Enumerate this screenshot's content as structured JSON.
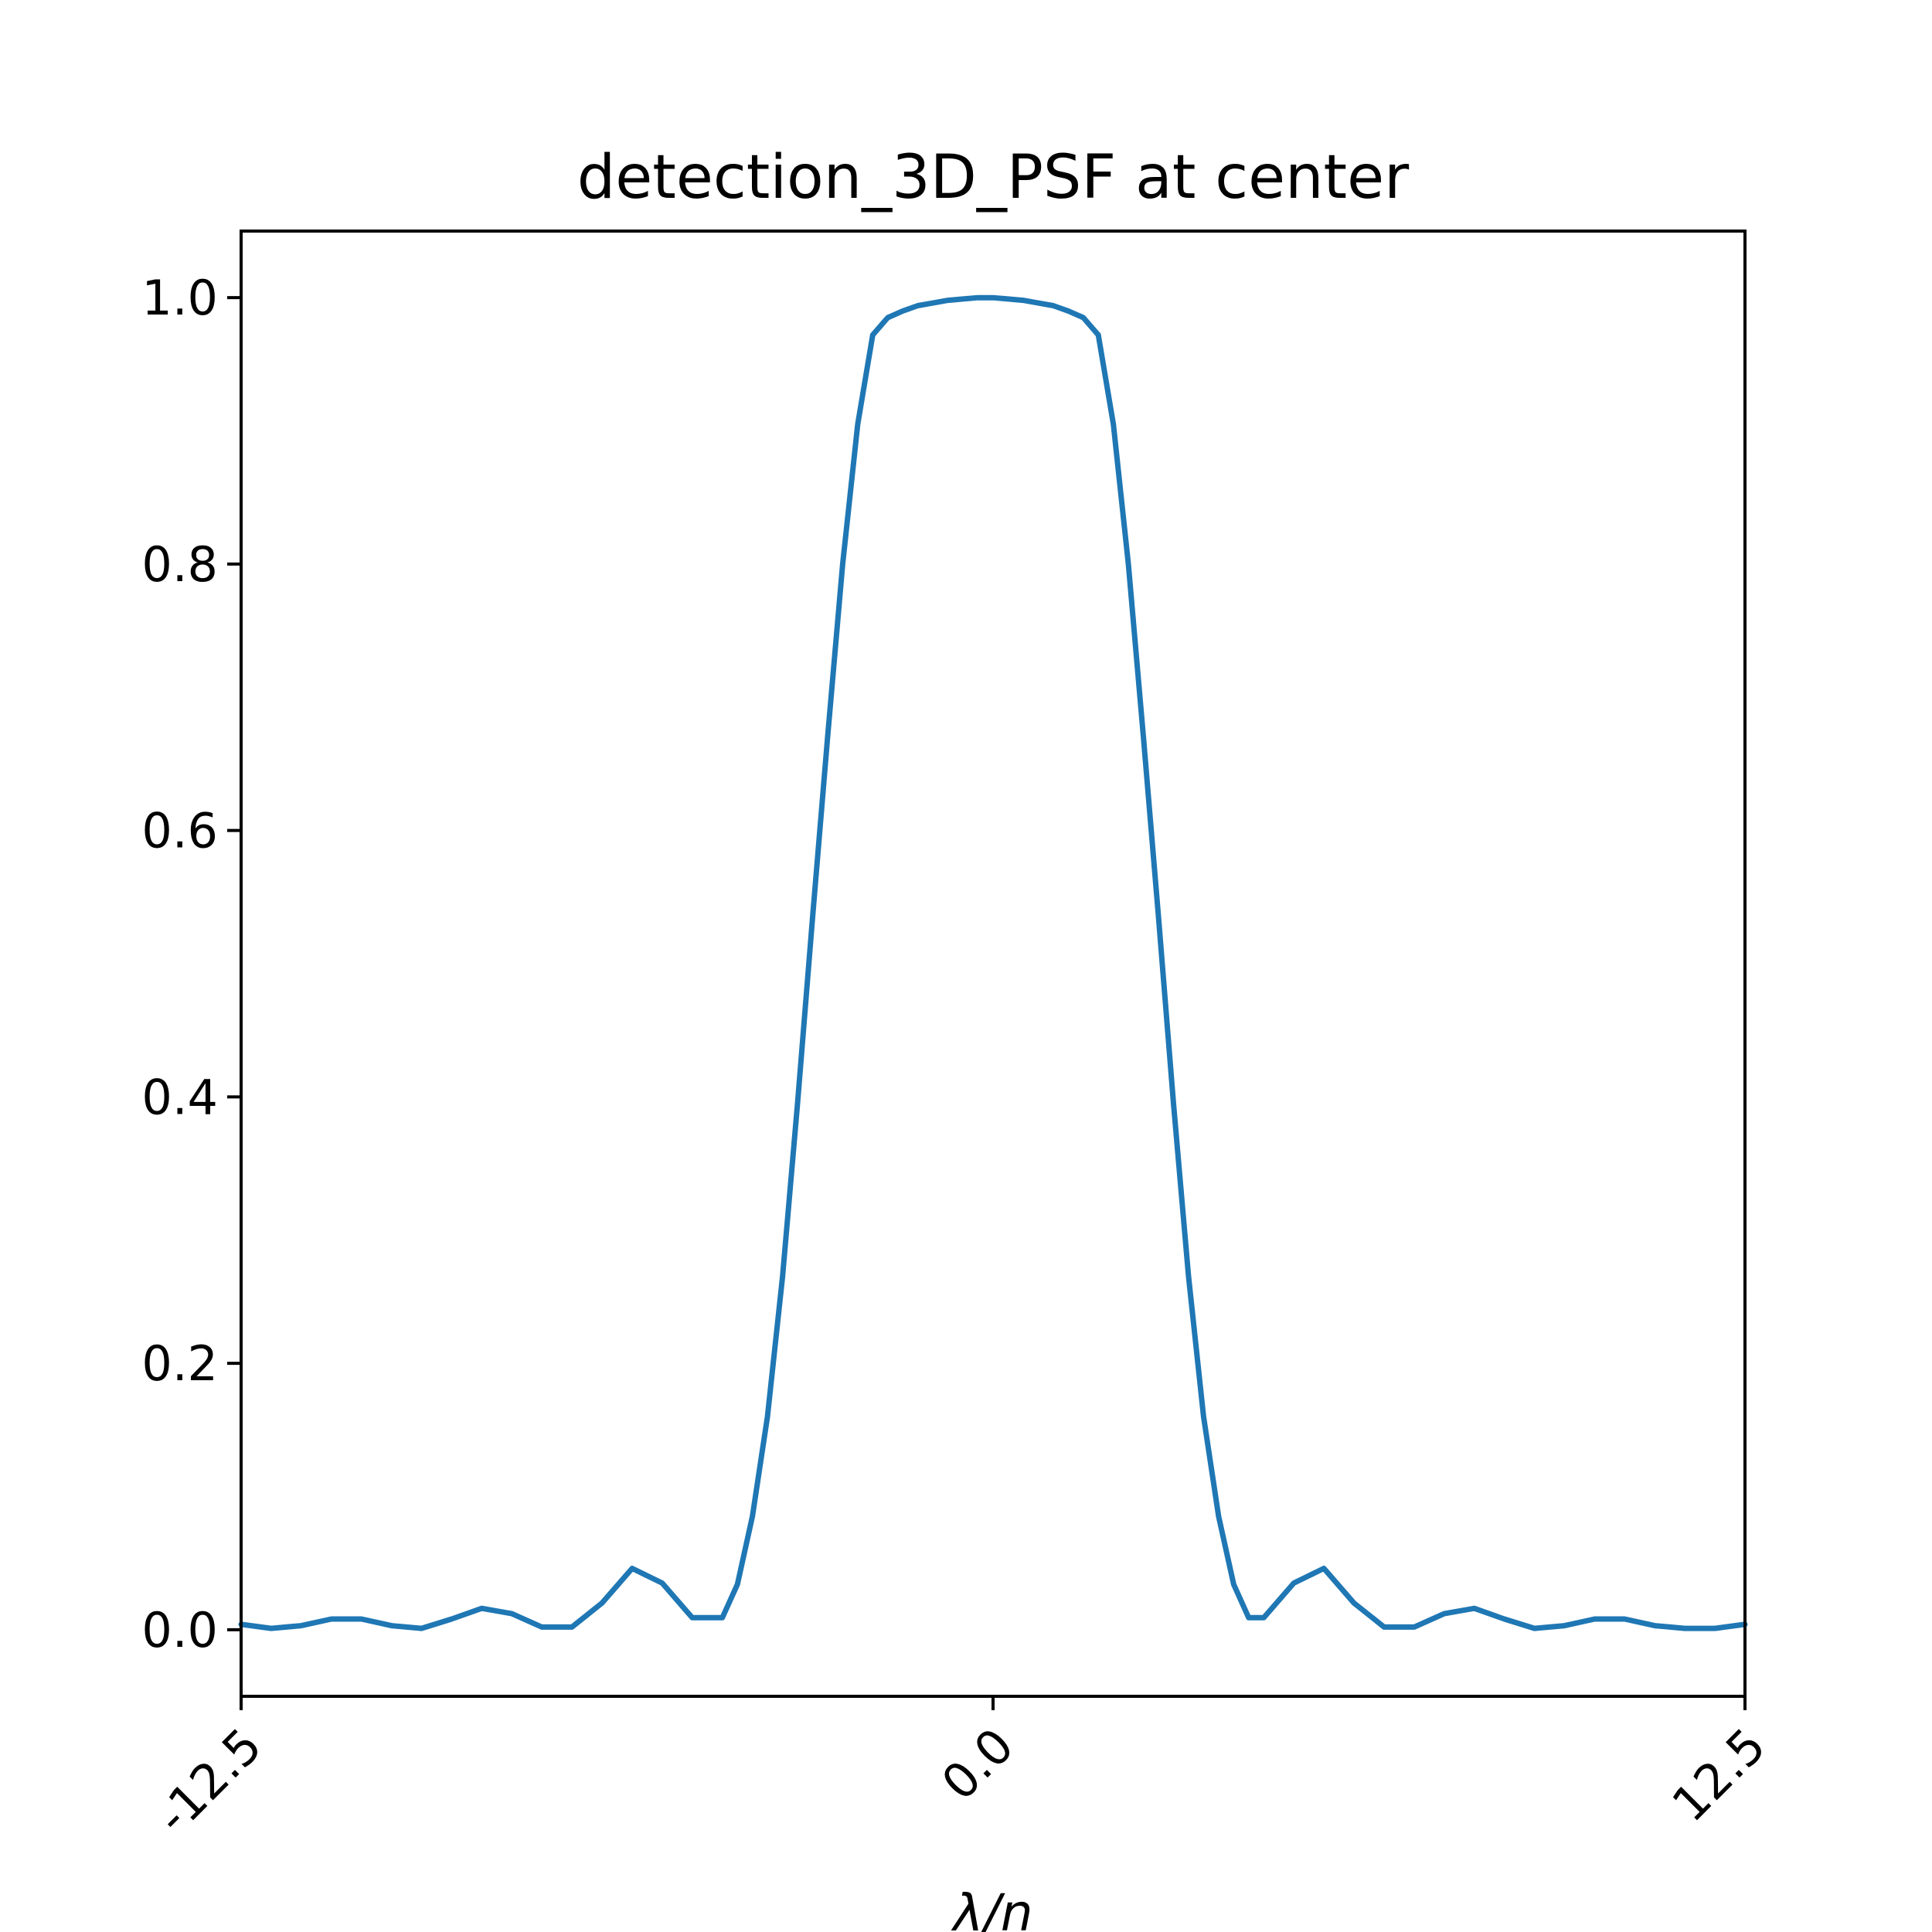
{
  "chart_data": {
    "type": "line",
    "title": "detection_3D_PSF at center",
    "xlabel": "λ/n",
    "ylabel": "",
    "xlim": [
      -12.5,
      12.5
    ],
    "ylim": [
      -0.05,
      1.05
    ],
    "xticks": [
      -12.5,
      0.0,
      12.5
    ],
    "xtick_labels": [
      "-12.5",
      "0.0",
      "12.5"
    ],
    "yticks": [
      0.0,
      0.2,
      0.4,
      0.6,
      0.8,
      1.0
    ],
    "ytick_labels": [
      "0.0",
      "0.2",
      "0.4",
      "0.6",
      "0.8",
      "1.0"
    ],
    "grid": false,
    "series": [
      {
        "color": "#1f77b4",
        "x": [
          -12.5,
          -12.0,
          -11.5,
          -11.0,
          -10.5,
          -10.0,
          -9.5,
          -9.0,
          -8.5,
          -8.0,
          -7.5,
          -7.0,
          -6.5,
          -6.0,
          -5.5,
          -5.0,
          -4.5,
          -4.25,
          -4.0,
          -3.75,
          -3.5,
          -3.25,
          -3.0,
          -2.75,
          -2.5,
          -2.25,
          -2.0,
          -1.75,
          -1.5,
          -1.25,
          -1.0,
          -0.75,
          -0.5,
          -0.25,
          0.0,
          0.25,
          0.5,
          0.75,
          1.0,
          1.25,
          1.5,
          1.75,
          2.0,
          2.25,
          2.5,
          2.75,
          3.0,
          3.25,
          3.5,
          3.75,
          4.0,
          4.25,
          4.5,
          5.0,
          5.5,
          6.0,
          6.5,
          7.0,
          7.5,
          8.0,
          8.5,
          9.0,
          9.5,
          10.0,
          10.5,
          11.0,
          11.5,
          12.0,
          12.5
        ],
        "y": [
          0.004,
          0.001,
          0.003,
          0.008,
          0.008,
          0.003,
          0.001,
          0.008,
          0.016,
          0.012,
          0.002,
          0.002,
          0.02,
          0.046,
          0.035,
          0.009,
          0.009,
          0.034,
          0.085,
          0.16,
          0.265,
          0.395,
          0.535,
          0.67,
          0.8,
          0.905,
          0.972,
          0.985,
          0.99,
          0.994,
          0.996,
          0.998,
          0.999,
          1.0,
          1.0,
          0.999,
          0.998,
          0.996,
          0.994,
          0.99,
          0.985,
          0.972,
          0.905,
          0.8,
          0.67,
          0.535,
          0.395,
          0.265,
          0.16,
          0.085,
          0.034,
          0.009,
          0.009,
          0.035,
          0.046,
          0.02,
          0.002,
          0.002,
          0.012,
          0.016,
          0.008,
          0.001,
          0.003,
          0.008,
          0.008,
          0.003,
          0.001,
          0.001,
          0.004
        ]
      }
    ]
  }
}
